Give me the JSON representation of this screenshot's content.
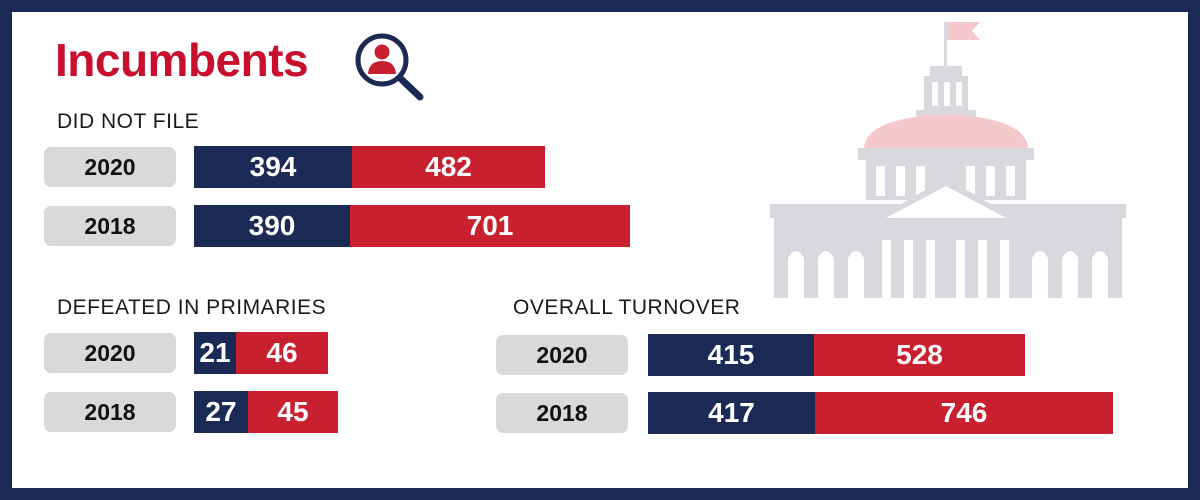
{
  "title": "Incumbents",
  "colors": {
    "navy": "#1a2a55",
    "red": "#c8202f",
    "title_red": "#c8102e",
    "pill": "#d9d9db",
    "frame": "#1a2a55"
  },
  "icons": {
    "title_icon": "magnifier-person-icon",
    "background": "capitol-building-icon"
  },
  "chart_data": [
    {
      "type": "bar",
      "stacked": true,
      "orientation": "horizontal",
      "title": "DID NOT FILE",
      "categories": [
        "2020",
        "2018"
      ],
      "series": [
        {
          "values": [
            394,
            390
          ]
        },
        {
          "values": [
            482,
            701
          ]
        }
      ]
    },
    {
      "type": "bar",
      "stacked": true,
      "orientation": "horizontal",
      "title": "DEFEATED IN PRIMARIES",
      "categories": [
        "2020",
        "2018"
      ],
      "series": [
        {
          "values": [
            21,
            27
          ]
        },
        {
          "values": [
            46,
            45
          ]
        }
      ]
    },
    {
      "type": "bar",
      "stacked": true,
      "orientation": "horizontal",
      "title": "OVERALL TURNOVER",
      "categories": [
        "2020",
        "2018"
      ],
      "series": [
        {
          "values": [
            415,
            417
          ]
        },
        {
          "values": [
            528,
            746
          ]
        }
      ]
    }
  ]
}
